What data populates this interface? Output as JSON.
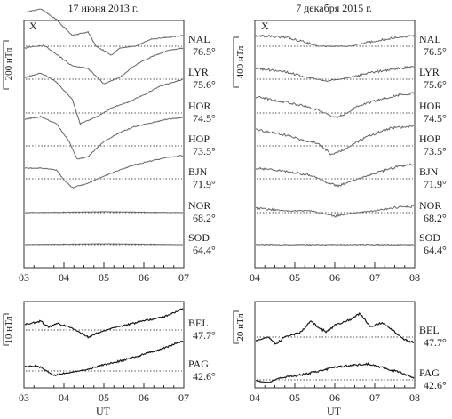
{
  "chart_data": [
    {
      "type": "line",
      "title": "17 июня 2013 г.",
      "component": "X",
      "scale_label": "200 нТл",
      "x_ticks": [
        "03",
        "04",
        "05",
        "06",
        "07"
      ],
      "xlim": [
        "03:00",
        "07:00"
      ],
      "stations": [
        {
          "code": "NAL",
          "lat": "76.5°",
          "shape": [
            [
              0,
              -38
            ],
            [
              0.1,
              -42
            ],
            [
              0.2,
              -30
            ],
            [
              0.3,
              -12
            ],
            [
              0.4,
              -16
            ],
            [
              0.45,
              0
            ],
            [
              0.55,
              10
            ],
            [
              0.6,
              2
            ],
            [
              0.7,
              0
            ],
            [
              0.8,
              -8
            ],
            [
              0.9,
              -10
            ],
            [
              1,
              -12
            ]
          ]
        },
        {
          "code": "LYR",
          "lat": "75.6°",
          "shape": [
            [
              0,
              -35
            ],
            [
              0.12,
              -38
            ],
            [
              0.2,
              -28
            ],
            [
              0.3,
              -15
            ],
            [
              0.4,
              -12
            ],
            [
              0.5,
              5
            ],
            [
              0.6,
              -2
            ],
            [
              0.7,
              -16
            ],
            [
              0.8,
              -25
            ],
            [
              0.9,
              -32
            ],
            [
              1,
              -35
            ]
          ]
        },
        {
          "code": "HOR",
          "lat": "74.5°",
          "shape": [
            [
              0,
              -40
            ],
            [
              0.1,
              -45
            ],
            [
              0.2,
              -35
            ],
            [
              0.3,
              -15
            ],
            [
              0.35,
              12
            ],
            [
              0.45,
              5
            ],
            [
              0.55,
              -6
            ],
            [
              0.65,
              -12
            ],
            [
              0.75,
              -20
            ],
            [
              0.85,
              -30
            ],
            [
              1,
              -38
            ]
          ]
        },
        {
          "code": "HOP",
          "lat": "73.5°",
          "shape": [
            [
              0,
              -30
            ],
            [
              0.1,
              -33
            ],
            [
              0.2,
              -25
            ],
            [
              0.28,
              -5
            ],
            [
              0.33,
              15
            ],
            [
              0.4,
              12
            ],
            [
              0.5,
              -5
            ],
            [
              0.6,
              -15
            ],
            [
              0.7,
              -22
            ],
            [
              0.8,
              -26
            ],
            [
              0.9,
              -30
            ],
            [
              1,
              -32
            ]
          ]
        },
        {
          "code": "BJN",
          "lat": "71.9°",
          "shape": [
            [
              0,
              -12
            ],
            [
              0.1,
              -12
            ],
            [
              0.2,
              -10
            ],
            [
              0.25,
              2
            ],
            [
              0.3,
              10
            ],
            [
              0.4,
              5
            ],
            [
              0.5,
              -3
            ],
            [
              0.6,
              -10
            ],
            [
              0.7,
              -16
            ],
            [
              0.8,
              -20
            ],
            [
              0.9,
              -24
            ],
            [
              1,
              -26
            ]
          ]
        },
        {
          "code": "NOR",
          "lat": "68.2°",
          "shape": [
            [
              0,
              0
            ],
            [
              0.5,
              -1
            ],
            [
              1,
              0
            ]
          ]
        },
        {
          "code": "SOD",
          "lat": "64.4°",
          "shape": [
            [
              0,
              0
            ],
            [
              0.5,
              -1
            ],
            [
              1,
              0
            ]
          ]
        }
      ]
    },
    {
      "type": "line",
      "title": "7 декабря 2015 г.",
      "component": "X",
      "scale_label": "400 нТл",
      "x_ticks": [
        "04",
        "05",
        "06",
        "07",
        "08"
      ],
      "xlim": [
        "04:00",
        "08:00"
      ],
      "stations": [
        {
          "code": "NAL",
          "lat": "76.5°",
          "shape": [
            [
              0,
              -12
            ],
            [
              0.2,
              -10
            ],
            [
              0.3,
              -5
            ],
            [
              0.4,
              0
            ],
            [
              0.6,
              0
            ],
            [
              0.75,
              -6
            ],
            [
              0.9,
              -10
            ],
            [
              1,
              -12
            ]
          ]
        },
        {
          "code": "LYR",
          "lat": "75.6°",
          "shape": [
            [
              0,
              -12
            ],
            [
              0.2,
              -8
            ],
            [
              0.3,
              -3
            ],
            [
              0.45,
              2
            ],
            [
              0.6,
              -2
            ],
            [
              0.75,
              -8
            ],
            [
              0.9,
              -12
            ],
            [
              1,
              -14
            ]
          ]
        },
        {
          "code": "HOR",
          "lat": "74.5°",
          "shape": [
            [
              0,
              -18
            ],
            [
              0.2,
              -12
            ],
            [
              0.3,
              -8
            ],
            [
              0.4,
              -3
            ],
            [
              0.5,
              5
            ],
            [
              0.55,
              3
            ],
            [
              0.65,
              -8
            ],
            [
              0.8,
              -16
            ],
            [
              0.9,
              -20
            ],
            [
              1,
              -22
            ]
          ]
        },
        {
          "code": "HOP",
          "lat": "73.5°",
          "shape": [
            [
              0,
              -18
            ],
            [
              0.2,
              -12
            ],
            [
              0.3,
              -6
            ],
            [
              0.4,
              -2
            ],
            [
              0.48,
              10
            ],
            [
              0.55,
              5
            ],
            [
              0.7,
              -10
            ],
            [
              0.85,
              -20
            ],
            [
              1,
              -22
            ]
          ]
        },
        {
          "code": "BJN",
          "lat": "71.9°",
          "shape": [
            [
              0,
              -12
            ],
            [
              0.2,
              -8
            ],
            [
              0.35,
              -4
            ],
            [
              0.45,
              4
            ],
            [
              0.52,
              8
            ],
            [
              0.6,
              3
            ],
            [
              0.75,
              -6
            ],
            [
              0.9,
              -14
            ],
            [
              1,
              -16
            ]
          ]
        },
        {
          "code": "NOR",
          "lat": "68.2°",
          "shape": [
            [
              0,
              -5
            ],
            [
              0.2,
              -2
            ],
            [
              0.35,
              -2
            ],
            [
              0.45,
              2
            ],
            [
              0.5,
              4
            ],
            [
              0.6,
              1
            ],
            [
              0.75,
              -2
            ],
            [
              0.9,
              -6
            ],
            [
              1,
              -7
            ]
          ]
        },
        {
          "code": "SOD",
          "lat": "64.4°",
          "shape": [
            [
              0,
              0
            ],
            [
              0.5,
              0
            ],
            [
              1,
              0
            ]
          ]
        }
      ]
    },
    {
      "type": "line",
      "xlabel": "UT",
      "scale_label": "10 нТл",
      "x_ticks": [
        "03",
        "04",
        "05",
        "06",
        "07"
      ],
      "xlim": [
        "03:00",
        "07:00"
      ],
      "stations": [
        {
          "code": "BEL",
          "lat": "47.7°",
          "shape": [
            [
              0,
              -6
            ],
            [
              0.1,
              -10
            ],
            [
              0.15,
              -3
            ],
            [
              0.2,
              -8
            ],
            [
              0.3,
              -2
            ],
            [
              0.4,
              8
            ],
            [
              0.45,
              4
            ],
            [
              0.55,
              -2
            ],
            [
              0.7,
              -8
            ],
            [
              0.8,
              -12
            ],
            [
              0.9,
              -16
            ],
            [
              1,
              -24
            ]
          ]
        },
        {
          "code": "PAG",
          "lat": "42.6°",
          "shape": [
            [
              0,
              -5
            ],
            [
              0.08,
              -6
            ],
            [
              0.12,
              -2
            ],
            [
              0.18,
              5
            ],
            [
              0.28,
              2
            ],
            [
              0.4,
              -2
            ],
            [
              0.5,
              -7
            ],
            [
              0.6,
              -11
            ],
            [
              0.7,
              -16
            ],
            [
              0.8,
              -21
            ],
            [
              0.9,
              -27
            ],
            [
              1,
              -34
            ]
          ]
        }
      ]
    },
    {
      "type": "line",
      "xlabel": "UT",
      "scale_label": "20 нТл",
      "x_ticks": [
        "04",
        "05",
        "06",
        "07",
        "08"
      ],
      "xlim": [
        "04:00",
        "08:00"
      ],
      "stations": [
        {
          "code": "BEL",
          "lat": "47.7°",
          "shape": [
            [
              0,
              4
            ],
            [
              0.08,
              0
            ],
            [
              0.13,
              8
            ],
            [
              0.18,
              0
            ],
            [
              0.28,
              -5
            ],
            [
              0.35,
              -18
            ],
            [
              0.4,
              -10
            ],
            [
              0.45,
              -6
            ],
            [
              0.5,
              -13
            ],
            [
              0.6,
              -20
            ],
            [
              0.66,
              -27
            ],
            [
              0.72,
              -12
            ],
            [
              0.8,
              -16
            ],
            [
              0.88,
              -6
            ],
            [
              0.94,
              3
            ],
            [
              1,
              6
            ]
          ]
        },
        {
          "code": "PAG",
          "lat": "42.6°",
          "shape": [
            [
              0,
              1
            ],
            [
              0.08,
              3
            ],
            [
              0.15,
              -2
            ],
            [
              0.3,
              -6
            ],
            [
              0.4,
              -10
            ],
            [
              0.5,
              -14
            ],
            [
              0.6,
              -16
            ],
            [
              0.7,
              -18
            ],
            [
              0.8,
              -14
            ],
            [
              0.88,
              -10
            ],
            [
              0.95,
              -6
            ],
            [
              1,
              -2
            ]
          ]
        }
      ]
    }
  ]
}
